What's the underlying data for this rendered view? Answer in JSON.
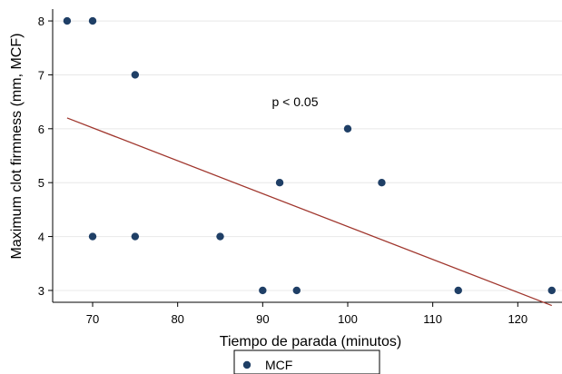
{
  "chart_data": {
    "type": "scatter",
    "xlabel": "Tiempo de parada (minutos)",
    "ylabel": "Maximum clot firmness (mm, MCF)",
    "xlim": [
      65.3,
      125.2
    ],
    "ylim": [
      2.78,
      8.22
    ],
    "x_ticks": [
      70,
      80,
      90,
      100,
      110,
      120
    ],
    "y_ticks": [
      3,
      4,
      5,
      6,
      7,
      8
    ],
    "grid": "horizontal",
    "annotation": "p < 0.05",
    "legend": {
      "placement": "bottom-center",
      "entries": [
        "MCF"
      ]
    },
    "series": [
      {
        "name": "MCF",
        "color": "#1f3f66",
        "points": [
          {
            "x": 67,
            "y": 8
          },
          {
            "x": 70,
            "y": 8
          },
          {
            "x": 75,
            "y": 7
          },
          {
            "x": 100,
            "y": 6
          },
          {
            "x": 92,
            "y": 5
          },
          {
            "x": 104,
            "y": 5
          },
          {
            "x": 70,
            "y": 4
          },
          {
            "x": 75,
            "y": 4
          },
          {
            "x": 85,
            "y": 4
          },
          {
            "x": 90,
            "y": 3
          },
          {
            "x": 94,
            "y": 3
          },
          {
            "x": 113,
            "y": 3
          },
          {
            "x": 124,
            "y": 3
          }
        ]
      }
    ],
    "fit_line": {
      "color": "#a0362d",
      "points": [
        {
          "x": 67,
          "y": 6.2
        },
        {
          "x": 124,
          "y": 2.72
        }
      ]
    }
  }
}
